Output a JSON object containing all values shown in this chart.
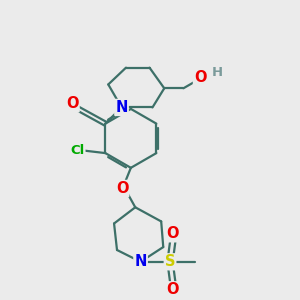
{
  "bg_color": "#ebebeb",
  "bond_color": "#3d7068",
  "bond_width": 1.6,
  "atom_colors": {
    "N": "#0000ee",
    "O": "#ee0000",
    "Cl": "#00aa00",
    "S": "#cccc00",
    "H": "#7a9a9a",
    "C": "#000000"
  },
  "font_size": 9.5,
  "xlim": [
    0,
    10
  ],
  "ylim": [
    0,
    10
  ]
}
